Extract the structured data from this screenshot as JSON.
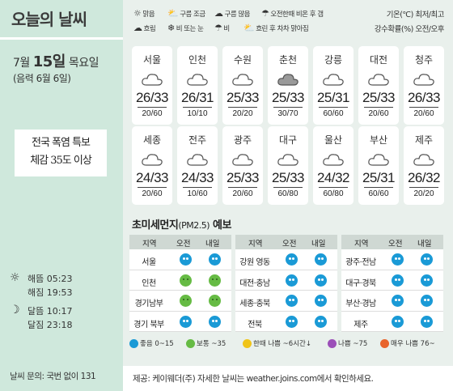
{
  "header": {
    "title": "오늘의 날씨"
  },
  "date": {
    "month_label": "7월",
    "day": "15일",
    "weekday": "목요일",
    "lunar": "(음력 6월 6일)"
  },
  "warning": {
    "line1": "전국 폭염 특보",
    "line2": "체감 35도 이상"
  },
  "sun_moon": {
    "sunrise_label": "해뜸",
    "sunrise": "05:23",
    "sunset_label": "해짐",
    "sunset": "19:53",
    "moonrise_label": "달뜸",
    "moonrise": "10:17",
    "moonset_label": "달짐",
    "moonset": "23:18"
  },
  "inquiry": "날씨 문의: 국번 없이 131",
  "weather_legend": [
    {
      "icon": "sun-icon",
      "label": "맑음"
    },
    {
      "icon": "cloud-sun-icon",
      "label": "구름 조금"
    },
    {
      "icon": "cloud-icon",
      "label": "구름 많음"
    },
    {
      "icon": "sun-rain-icon",
      "label": "오전한때 비온 후 갬"
    },
    {
      "icon": "gray-cloud-icon",
      "label": "흐림"
    },
    {
      "icon": "rain-snow-icon",
      "label": "비 또는 눈"
    },
    {
      "icon": "rain-icon",
      "label": "비"
    },
    {
      "icon": "clearing-icon",
      "label": "흐린 후 차차 맑아짐"
    }
  ],
  "units": {
    "temp": "기온(℃) 최저/최고",
    "rain": "강수확률(%) 오전/오후"
  },
  "cities": [
    {
      "name": "서울",
      "temp": "26/33",
      "rain": "20/60",
      "icon": "cloud-icon"
    },
    {
      "name": "인천",
      "temp": "26/31",
      "rain": "10/10",
      "icon": "cloud-icon"
    },
    {
      "name": "수원",
      "temp": "25/33",
      "rain": "20/20",
      "icon": "cloud-icon"
    },
    {
      "name": "춘천",
      "temp": "25/33",
      "rain": "30/70",
      "icon": "gray-cloud-icon"
    },
    {
      "name": "강릉",
      "temp": "25/31",
      "rain": "60/60",
      "icon": "cloud-icon"
    },
    {
      "name": "대전",
      "temp": "25/33",
      "rain": "20/60",
      "icon": "cloud-icon"
    },
    {
      "name": "청주",
      "temp": "26/33",
      "rain": "20/60",
      "icon": "cloud-icon"
    },
    {
      "name": "세종",
      "temp": "24/33",
      "rain": "20/60",
      "icon": "cloud-icon"
    },
    {
      "name": "전주",
      "temp": "24/33",
      "rain": "10/60",
      "icon": "cloud-icon"
    },
    {
      "name": "광주",
      "temp": "25/33",
      "rain": "20/60",
      "icon": "cloud-icon"
    },
    {
      "name": "대구",
      "temp": "25/33",
      "rain": "60/80",
      "icon": "cloud-icon"
    },
    {
      "name": "울산",
      "temp": "24/32",
      "rain": "60/80",
      "icon": "cloud-icon"
    },
    {
      "name": "부산",
      "temp": "25/31",
      "rain": "60/60",
      "icon": "cloud-icon"
    },
    {
      "name": "제주",
      "temp": "26/32",
      "rain": "20/20",
      "icon": "cloud-icon"
    }
  ],
  "pm": {
    "title": "초미세먼지",
    "subtitle": "(PM2.5)",
    "title_suffix": "예보",
    "headers": {
      "region": "지역",
      "am": "오전",
      "pm": "내일"
    },
    "tables": [
      [
        {
          "region": "서울",
          "am": "good",
          "pm": "good"
        },
        {
          "region": "인천",
          "am": "normal",
          "pm": "normal"
        },
        {
          "region": "경기남부",
          "am": "normal",
          "pm": "normal"
        },
        {
          "region": "경기 북부",
          "am": "good",
          "pm": "good"
        }
      ],
      [
        {
          "region": "강원 영동",
          "am": "good",
          "pm": "good"
        },
        {
          "region": "대전·충남",
          "am": "good",
          "pm": "good"
        },
        {
          "region": "세종·충북",
          "am": "good",
          "pm": "good"
        },
        {
          "region": "전북",
          "am": "good",
          "pm": "good"
        }
      ],
      [
        {
          "region": "광주·전남",
          "am": "good",
          "pm": "good"
        },
        {
          "region": "대구·경북",
          "am": "good",
          "pm": "good"
        },
        {
          "region": "부산·경남",
          "am": "good",
          "pm": "good"
        },
        {
          "region": "제주",
          "am": "good",
          "pm": "good"
        }
      ]
    ],
    "legend": [
      {
        "label": "좋음 0~15",
        "color": "#1a9ad6"
      },
      {
        "label": "보통 ~35",
        "color": "#66bb44"
      },
      {
        "label": "한때 나쁨 ~6시간↓",
        "color": "#f0c419"
      },
      {
        "label": "나쁨 ~75",
        "color": "#9b4fb8"
      },
      {
        "label": "매우 나쁨 76~",
        "color": "#e8642c"
      }
    ]
  },
  "footer": "제공: 케이웨더(주) 자세한 날씨는 weather.joins.com에서 확인하세요.",
  "colors": {
    "sidebar": "#cfe8dc",
    "main_bg": "#e9f0ec",
    "good": "#1a9ad6",
    "normal": "#66bb44"
  }
}
